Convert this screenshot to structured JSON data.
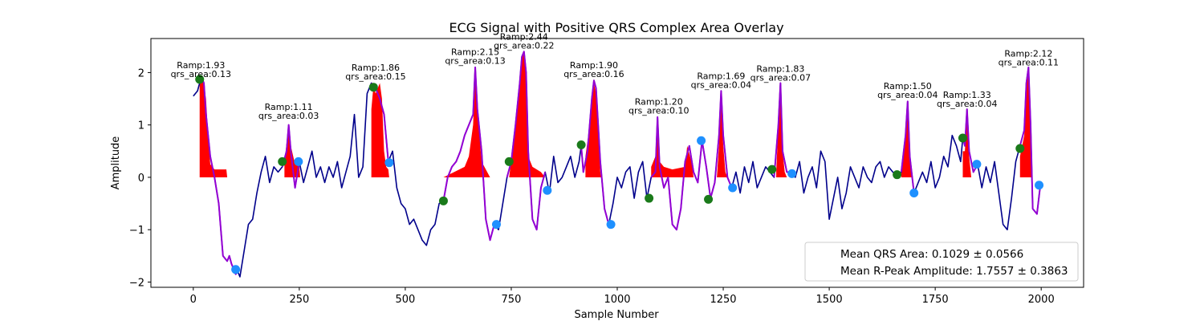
{
  "chart_data": {
    "type": "line",
    "title": "ECG Signal with Positive QRS Complex Area Overlay",
    "xlabel": "Sample Number",
    "ylabel": "Amplitude",
    "xlim": [
      -100,
      2100
    ],
    "ylim": [
      -2.1,
      2.65
    ],
    "xticks": [
      0,
      250,
      500,
      750,
      1000,
      1250,
      1500,
      1750,
      2000
    ],
    "yticks": [
      -2,
      -1,
      0,
      1,
      2
    ],
    "xtick_labels": [
      "0",
      "250",
      "500",
      "750",
      "1000",
      "1250",
      "1500",
      "1750",
      "2000"
    ],
    "ytick_labels": [
      "−2",
      "−1",
      "0",
      "1",
      "2"
    ],
    "grid": false,
    "colors": {
      "signal": "#00008b",
      "qrs_segment": "#9400d3",
      "area_fill": "#ff0000",
      "onset_marker": "#1a7a1a",
      "offset_marker": "#1e90ff"
    },
    "signal": [
      [
        0,
        1.55
      ],
      [
        10,
        1.65
      ],
      [
        15,
        1.8
      ],
      [
        20,
        1.9
      ],
      [
        25,
        1.8
      ],
      [
        30,
        1.2
      ],
      [
        40,
        0.4
      ],
      [
        50,
        0.0
      ],
      [
        60,
        -0.5
      ],
      [
        70,
        -1.5
      ],
      [
        80,
        -1.6
      ],
      [
        85,
        -1.5
      ],
      [
        90,
        -1.65
      ],
      [
        95,
        -1.75
      ],
      [
        100,
        -1.85
      ],
      [
        105,
        -1.8
      ],
      [
        110,
        -1.9
      ],
      [
        120,
        -1.4
      ],
      [
        130,
        -0.9
      ],
      [
        140,
        -0.8
      ],
      [
        150,
        -0.3
      ],
      [
        160,
        0.1
      ],
      [
        170,
        0.4
      ],
      [
        180,
        -0.1
      ],
      [
        190,
        0.2
      ],
      [
        200,
        0.1
      ],
      [
        210,
        0.2
      ],
      [
        220,
        0.5
      ],
      [
        225,
        1.0
      ],
      [
        230,
        0.5
      ],
      [
        240,
        -0.2
      ],
      [
        250,
        0.3
      ],
      [
        260,
        -0.1
      ],
      [
        270,
        0.2
      ],
      [
        280,
        0.5
      ],
      [
        290,
        0.0
      ],
      [
        300,
        0.2
      ],
      [
        310,
        -0.1
      ],
      [
        320,
        0.2
      ],
      [
        330,
        0.0
      ],
      [
        340,
        0.3
      ],
      [
        350,
        -0.2
      ],
      [
        360,
        0.1
      ],
      [
        370,
        0.4
      ],
      [
        380,
        1.2
      ],
      [
        390,
        0.0
      ],
      [
        400,
        0.2
      ],
      [
        410,
        1.6
      ],
      [
        420,
        1.8
      ],
      [
        430,
        1.7
      ],
      [
        440,
        1.5
      ],
      [
        450,
        1.2
      ],
      [
        460,
        0.3
      ],
      [
        470,
        0.5
      ],
      [
        480,
        -0.2
      ],
      [
        490,
        -0.5
      ],
      [
        500,
        -0.6
      ],
      [
        510,
        -0.9
      ],
      [
        520,
        -0.8
      ],
      [
        530,
        -1.0
      ],
      [
        540,
        -1.2
      ],
      [
        550,
        -1.3
      ],
      [
        560,
        -1.0
      ],
      [
        570,
        -0.9
      ],
      [
        580,
        -0.5
      ],
      [
        590,
        -0.45
      ],
      [
        600,
        0.0
      ],
      [
        610,
        0.2
      ],
      [
        620,
        0.3
      ],
      [
        630,
        0.5
      ],
      [
        640,
        0.8
      ],
      [
        650,
        1.0
      ],
      [
        660,
        1.2
      ],
      [
        665,
        2.1
      ],
      [
        670,
        1.3
      ],
      [
        680,
        0.5
      ],
      [
        690,
        -0.8
      ],
      [
        700,
        -1.2
      ],
      [
        710,
        -0.9
      ],
      [
        720,
        -1.0
      ],
      [
        730,
        -0.5
      ],
      [
        740,
        0.0
      ],
      [
        750,
        0.3
      ],
      [
        760,
        1.0
      ],
      [
        770,
        1.8
      ],
      [
        775,
        2.3
      ],
      [
        780,
        2.4
      ],
      [
        785,
        2.0
      ],
      [
        790,
        0.5
      ],
      [
        800,
        -0.8
      ],
      [
        810,
        -1.0
      ],
      [
        820,
        -0.2
      ],
      [
        830,
        0.1
      ],
      [
        840,
        -0.3
      ],
      [
        850,
        0.4
      ],
      [
        860,
        -0.1
      ],
      [
        870,
        0.0
      ],
      [
        880,
        0.2
      ],
      [
        890,
        0.4
      ],
      [
        900,
        0.0
      ],
      [
        910,
        0.3
      ],
      [
        915,
        0.6
      ],
      [
        920,
        0.1
      ],
      [
        930,
        0.5
      ],
      [
        940,
        1.5
      ],
      [
        945,
        1.85
      ],
      [
        950,
        1.7
      ],
      [
        960,
        0.3
      ],
      [
        970,
        -0.6
      ],
      [
        980,
        -0.9
      ],
      [
        990,
        -0.5
      ],
      [
        1000,
        0.0
      ],
      [
        1010,
        -0.2
      ],
      [
        1020,
        0.1
      ],
      [
        1030,
        0.2
      ],
      [
        1040,
        -0.4
      ],
      [
        1050,
        0.1
      ],
      [
        1060,
        0.3
      ],
      [
        1070,
        -0.4
      ],
      [
        1080,
        0.0
      ],
      [
        1090,
        0.1
      ],
      [
        1095,
        1.15
      ],
      [
        1100,
        0.2
      ],
      [
        1110,
        -0.2
      ],
      [
        1120,
        0.0
      ],
      [
        1130,
        -0.9
      ],
      [
        1140,
        -1.0
      ],
      [
        1150,
        -0.6
      ],
      [
        1160,
        0.3
      ],
      [
        1170,
        0.6
      ],
      [
        1180,
        0.1
      ],
      [
        1190,
        -0.1
      ],
      [
        1200,
        0.7
      ],
      [
        1210,
        0.2
      ],
      [
        1220,
        -0.4
      ],
      [
        1230,
        -0.1
      ],
      [
        1240,
        0.8
      ],
      [
        1245,
        1.65
      ],
      [
        1250,
        0.8
      ],
      [
        1260,
        0.0
      ],
      [
        1270,
        -0.2
      ],
      [
        1280,
        0.1
      ],
      [
        1290,
        -0.3
      ],
      [
        1300,
        0.2
      ],
      [
        1310,
        -0.1
      ],
      [
        1320,
        0.3
      ],
      [
        1330,
        -0.2
      ],
      [
        1340,
        0.0
      ],
      [
        1350,
        0.2
      ],
      [
        1360,
        0.1
      ],
      [
        1370,
        0.0
      ],
      [
        1380,
        1.0
      ],
      [
        1385,
        1.8
      ],
      [
        1390,
        0.5
      ],
      [
        1400,
        0.1
      ],
      [
        1410,
        0.1
      ],
      [
        1420,
        0.0
      ],
      [
        1430,
        0.3
      ],
      [
        1440,
        -0.3
      ],
      [
        1450,
        0.0
      ],
      [
        1460,
        0.2
      ],
      [
        1470,
        -0.2
      ],
      [
        1480,
        0.5
      ],
      [
        1490,
        0.3
      ],
      [
        1500,
        -0.8
      ],
      [
        1510,
        -0.4
      ],
      [
        1520,
        0.0
      ],
      [
        1530,
        -0.6
      ],
      [
        1540,
        -0.3
      ],
      [
        1550,
        0.2
      ],
      [
        1560,
        0.0
      ],
      [
        1570,
        -0.2
      ],
      [
        1580,
        0.2
      ],
      [
        1590,
        0.0
      ],
      [
        1600,
        -0.1
      ],
      [
        1610,
        0.2
      ],
      [
        1620,
        0.3
      ],
      [
        1630,
        0.0
      ],
      [
        1640,
        0.2
      ],
      [
        1650,
        0.1
      ],
      [
        1660,
        0.05
      ],
      [
        1670,
        0.1
      ],
      [
        1680,
        0.8
      ],
      [
        1685,
        1.45
      ],
      [
        1690,
        0.4
      ],
      [
        1700,
        -0.3
      ],
      [
        1710,
        -0.1
      ],
      [
        1720,
        0.1
      ],
      [
        1730,
        -0.1
      ],
      [
        1740,
        0.3
      ],
      [
        1750,
        -0.2
      ],
      [
        1760,
        0.0
      ],
      [
        1770,
        0.4
      ],
      [
        1780,
        0.2
      ],
      [
        1790,
        0.8
      ],
      [
        1800,
        0.6
      ],
      [
        1810,
        0.3
      ],
      [
        1815,
        0.75
      ],
      [
        1820,
        0.6
      ],
      [
        1825,
        1.3
      ],
      [
        1830,
        0.5
      ],
      [
        1840,
        0.1
      ],
      [
        1850,
        0.25
      ],
      [
        1860,
        -0.2
      ],
      [
        1870,
        0.2
      ],
      [
        1880,
        -0.1
      ],
      [
        1890,
        0.3
      ],
      [
        1900,
        -0.3
      ],
      [
        1910,
        -0.9
      ],
      [
        1920,
        -1.0
      ],
      [
        1930,
        -0.4
      ],
      [
        1940,
        0.3
      ],
      [
        1950,
        0.6
      ],
      [
        1960,
        0.9
      ],
      [
        1965,
        1.8
      ],
      [
        1970,
        2.1
      ],
      [
        1975,
        1.0
      ],
      [
        1980,
        -0.6
      ],
      [
        1990,
        -0.7
      ],
      [
        1998,
        -0.15
      ]
    ],
    "qrs_segments": [
      [
        20,
        105
      ],
      [
        210,
        250
      ],
      [
        420,
        465
      ],
      [
        590,
        715
      ],
      [
        740,
        830
      ],
      [
        915,
        985
      ],
      [
        1080,
        1270
      ],
      [
        1370,
        1410
      ],
      [
        1665,
        1700
      ],
      [
        1815,
        1850
      ],
      [
        1950,
        2000
      ]
    ],
    "onset_points": [
      [
        15,
        1.87
      ],
      [
        210,
        0.3
      ],
      [
        425,
        1.72
      ],
      [
        590,
        -0.45
      ],
      [
        745,
        0.3
      ],
      [
        915,
        0.62
      ],
      [
        1075,
        -0.4
      ],
      [
        1215,
        -0.42
      ],
      [
        1365,
        0.15
      ],
      [
        1660,
        0.05
      ],
      [
        1815,
        0.75
      ],
      [
        1950,
        0.55
      ]
    ],
    "offset_points": [
      [
        100,
        -1.76
      ],
      [
        248,
        0.3
      ],
      [
        462,
        0.28
      ],
      [
        715,
        -0.9
      ],
      [
        835,
        -0.25
      ],
      [
        985,
        -0.9
      ],
      [
        1198,
        0.7
      ],
      [
        1272,
        -0.2
      ],
      [
        1412,
        0.07
      ],
      [
        1700,
        -0.3
      ],
      [
        1848,
        0.25
      ],
      [
        1995,
        -0.15
      ]
    ],
    "area_regions": [
      {
        "pts": [
          [
            15,
            1.9
          ],
          [
            20,
            1.9
          ],
          [
            25,
            1.75
          ],
          [
            30,
            1.5
          ],
          [
            35,
            0.8
          ],
          [
            40,
            0.25
          ],
          [
            50,
            0.15
          ],
          [
            60,
            0.15
          ],
          [
            70,
            0.15
          ],
          [
            78,
            0.15
          ],
          [
            80,
            0.0
          ]
        ]
      },
      {
        "pts": [
          [
            215,
            0.3
          ],
          [
            225,
            1.0
          ],
          [
            230,
            0.6
          ],
          [
            240,
            0.25
          ],
          [
            250,
            0.25
          ],
          [
            252,
            0.0
          ]
        ]
      },
      {
        "pts": [
          [
            420,
            1.3
          ],
          [
            425,
            1.75
          ],
          [
            430,
            1.6
          ],
          [
            440,
            1.8
          ],
          [
            445,
            1.5
          ],
          [
            450,
            0.5
          ],
          [
            455,
            0.2
          ],
          [
            460,
            0.15
          ],
          [
            462,
            0.0
          ]
        ]
      },
      {
        "pts": [
          [
            590,
            0.0
          ],
          [
            640,
            0.2
          ],
          [
            650,
            0.4
          ],
          [
            660,
            1.0
          ],
          [
            665,
            2.05
          ],
          [
            670,
            1.3
          ],
          [
            675,
            0.8
          ],
          [
            680,
            0.3
          ],
          [
            690,
            0.15
          ],
          [
            700,
            0.0
          ]
        ]
      },
      {
        "pts": [
          [
            745,
            0.0
          ],
          [
            760,
            1.0
          ],
          [
            770,
            1.8
          ],
          [
            775,
            2.3
          ],
          [
            780,
            2.4
          ],
          [
            785,
            1.8
          ],
          [
            790,
            0.4
          ],
          [
            800,
            0.2
          ],
          [
            820,
            0.1
          ],
          [
            830,
            0.0
          ]
        ]
      },
      {
        "pts": [
          [
            925,
            0.4
          ],
          [
            935,
            1.0
          ],
          [
            940,
            1.5
          ],
          [
            945,
            1.8
          ],
          [
            950,
            1.6
          ],
          [
            955,
            0.8
          ],
          [
            960,
            0.1
          ],
          [
            962,
            0.0
          ]
        ]
      },
      {
        "pts": [
          [
            1080,
            0.2
          ],
          [
            1090,
            0.4
          ],
          [
            1095,
            1.1
          ],
          [
            1100,
            0.3
          ],
          [
            1110,
            0.2
          ],
          [
            1130,
            0.15
          ],
          [
            1160,
            0.2
          ],
          [
            1165,
            0.6
          ],
          [
            1175,
            0.3
          ],
          [
            1180,
            0.0
          ]
        ]
      },
      {
        "pts": [
          [
            1235,
            0.0
          ],
          [
            1240,
            0.6
          ],
          [
            1245,
            1.6
          ],
          [
            1250,
            0.6
          ],
          [
            1255,
            0.1
          ],
          [
            1260,
            0.0
          ]
        ]
      },
      {
        "pts": [
          [
            1375,
            0.1
          ],
          [
            1380,
            1.0
          ],
          [
            1385,
            1.75
          ],
          [
            1390,
            0.5
          ],
          [
            1395,
            0.1
          ],
          [
            1400,
            0.0
          ]
        ]
      },
      {
        "pts": [
          [
            1670,
            0.1
          ],
          [
            1680,
            0.8
          ],
          [
            1685,
            1.45
          ],
          [
            1690,
            0.4
          ],
          [
            1695,
            0.0
          ]
        ]
      },
      {
        "pts": [
          [
            1815,
            0.5
          ],
          [
            1820,
            0.5
          ],
          [
            1825,
            1.25
          ],
          [
            1830,
            0.4
          ],
          [
            1835,
            0.0
          ]
        ]
      },
      {
        "pts": [
          [
            1950,
            0.4
          ],
          [
            1960,
            0.8
          ],
          [
            1965,
            1.7
          ],
          [
            1970,
            2.05
          ],
          [
            1975,
            0.9
          ],
          [
            1978,
            0.0
          ]
        ]
      }
    ],
    "annotations": [
      {
        "x": 18,
        "y": 1.9,
        "text1": "Ramp:1.93",
        "text2": "qrs_area:0.13"
      },
      {
        "x": 225,
        "y": 1.1,
        "text1": "Ramp:1.11",
        "text2": "qrs_area:0.03"
      },
      {
        "x": 430,
        "y": 1.85,
        "text1": "Ramp:1.86",
        "text2": "qrs_area:0.15"
      },
      {
        "x": 665,
        "y": 2.15,
        "text1": "Ramp:2.15",
        "text2": "qrs_area:0.13"
      },
      {
        "x": 780,
        "y": 2.44,
        "text1": "Ramp:2.44",
        "text2": "qrs_area:0.22"
      },
      {
        "x": 945,
        "y": 1.9,
        "text1": "Ramp:1.90",
        "text2": "qrs_area:0.16"
      },
      {
        "x": 1098,
        "y": 1.2,
        "text1": "Ramp:1.20",
        "text2": "qrs_area:0.10"
      },
      {
        "x": 1245,
        "y": 1.69,
        "text1": "Ramp:1.69",
        "text2": "qrs_area:0.04"
      },
      {
        "x": 1385,
        "y": 1.83,
        "text1": "Ramp:1.83",
        "text2": "qrs_area:0.07"
      },
      {
        "x": 1685,
        "y": 1.5,
        "text1": "Ramp:1.50",
        "text2": "qrs_area:0.04"
      },
      {
        "x": 1825,
        "y": 1.33,
        "text1": "Ramp:1.33",
        "text2": "qrs_area:0.04"
      },
      {
        "x": 1970,
        "y": 2.12,
        "text1": "Ramp:2.12",
        "text2": "qrs_area:0.11"
      }
    ],
    "legend": {
      "placement": "lower-right",
      "entries": [
        "Mean QRS Area: 0.1029 ± 0.0566",
        "Mean R-Peak Amplitude: 1.7557 ± 0.3863"
      ]
    }
  }
}
